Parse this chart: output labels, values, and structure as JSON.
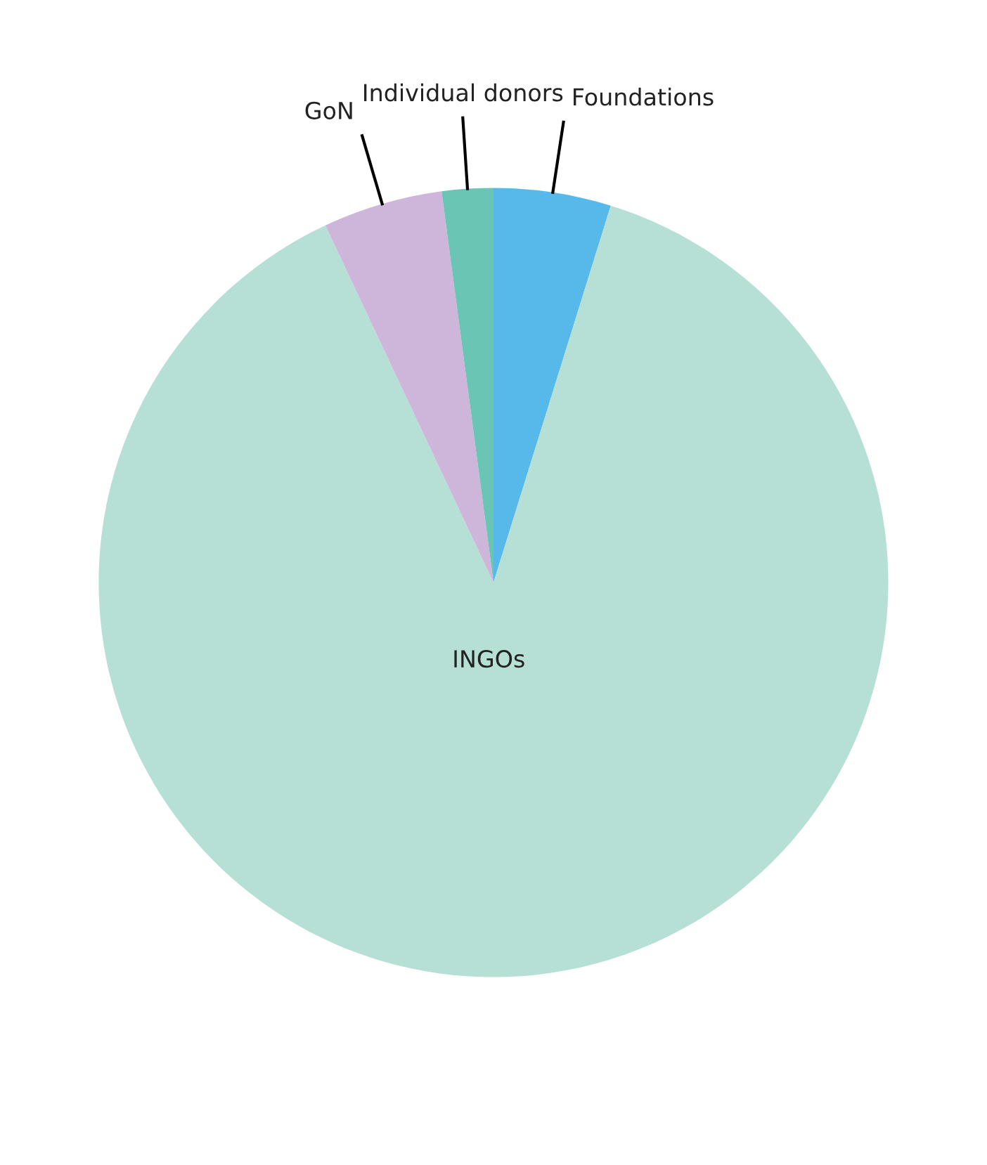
{
  "chart_data": {
    "type": "pie",
    "categories": [
      "Foundations",
      "INGOs",
      "GoN",
      "Individual donors"
    ],
    "values": [
      4.8,
      88.2,
      4.9,
      2.1
    ],
    "colors": [
      "#56b9e9",
      "#b6dfd6",
      "#cdb6d9",
      "#6bc5b4"
    ]
  }
}
